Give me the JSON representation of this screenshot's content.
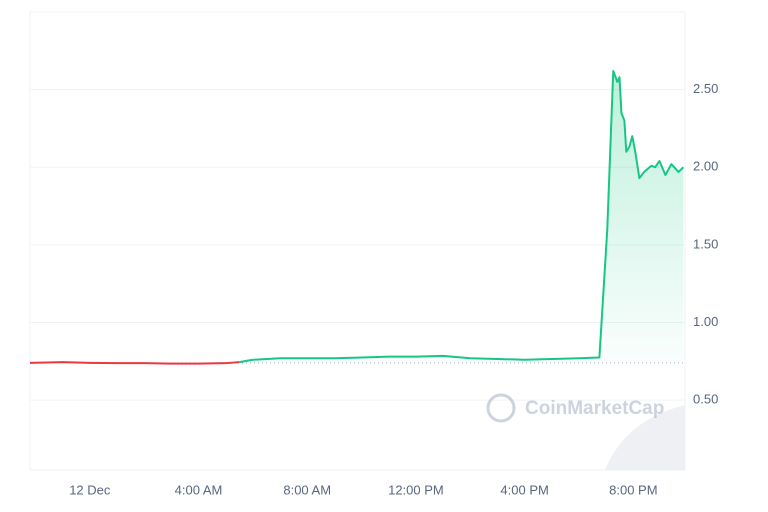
{
  "chart_data": {
    "type": "line",
    "watermark": "CoinMarketCap",
    "x": [
      -2.2,
      -1,
      0,
      1,
      2,
      3,
      4,
      5,
      5.5,
      6,
      7,
      8,
      9,
      10,
      11,
      12,
      13,
      14,
      15,
      16,
      17,
      18,
      18.75,
      19.04,
      19.26,
      19.41,
      19.49,
      19.56,
      19.67,
      19.74,
      19.85,
      19.96,
      20.07,
      20.22,
      20.4,
      20.66,
      20.8,
      20.96,
      21.18,
      21.4,
      21.66,
      21.84
    ],
    "series": [
      {
        "color": "#16c784",
        "below_color": "#ea3943",
        "values": [
          0.74,
          0.745,
          0.74,
          0.738,
          0.738,
          0.735,
          0.735,
          0.738,
          0.745,
          0.76,
          0.77,
          0.77,
          0.77,
          0.775,
          0.78,
          0.78,
          0.785,
          0.77,
          0.765,
          0.76,
          0.765,
          0.77,
          0.775,
          1.6,
          2.62,
          2.55,
          2.58,
          2.35,
          2.3,
          2.1,
          2.13,
          2.2,
          2.1,
          1.93,
          1.97,
          2.01,
          2.0,
          2.04,
          1.95,
          2.02,
          1.97,
          2.0
        ]
      }
    ],
    "baseline": 0.74,
    "xlim": [
      -2.2,
      21.9
    ],
    "ylim": [
      0.05,
      3.0
    ],
    "xticks": [
      {
        "value": 0,
        "label": "12 Dec"
      },
      {
        "value": 4,
        "label": "4:00 AM"
      },
      {
        "value": 8,
        "label": "8:00 AM"
      },
      {
        "value": 12,
        "label": "12:00 PM"
      },
      {
        "value": 16,
        "label": "4:00 PM"
      },
      {
        "value": 20,
        "label": "8:00 PM"
      }
    ],
    "yticks": [
      {
        "value": 0.5,
        "label": "0.50"
      },
      {
        "value": 1.0,
        "label": "1.00"
      },
      {
        "value": 1.5,
        "label": "1.50"
      },
      {
        "value": 2.0,
        "label": "2.00"
      },
      {
        "value": 2.5,
        "label": "2.50"
      }
    ],
    "grid": true
  }
}
